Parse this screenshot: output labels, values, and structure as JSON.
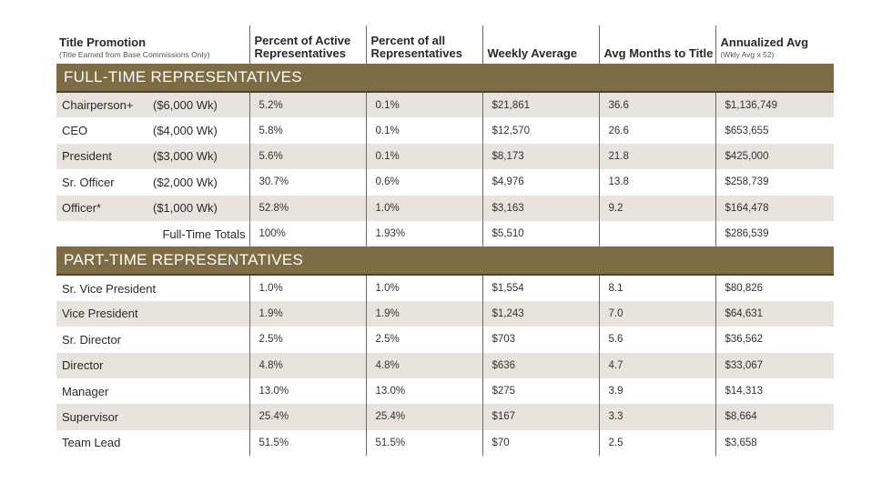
{
  "header": {
    "col1_title": "Title Promotion",
    "col1_sub": "(Title Earned from Base Commissions Only)",
    "col2": "Percent of Active Representatives",
    "col3": "Percent of all Representatives",
    "col4": "Weekly Average",
    "col5": "Avg Months to Title",
    "col6_title": "Annualized Avg",
    "col6_sub": "(Wkly Avg x 52)"
  },
  "full_time": {
    "section_label": "FULL-TIME REPRESENTATIVES",
    "rows": [
      {
        "title": "Chairperson+",
        "weekly": "($6,000 Wk)",
        "pct_active": "5.2%",
        "pct_all": "0.1%",
        "weekly_avg": "$21,861",
        "months": "36.6",
        "annualized": "$1,136,749"
      },
      {
        "title": "CEO",
        "weekly": "($4,000 Wk)",
        "pct_active": "5.8%",
        "pct_all": "0.1%",
        "weekly_avg": "$12,570",
        "months": "26.6",
        "annualized": "$653,655"
      },
      {
        "title": "President",
        "weekly": "($3,000 Wk)",
        "pct_active": "5.6%",
        "pct_all": "0.1%",
        "weekly_avg": "$8,173",
        "months": "21.8",
        "annualized": "$425,000"
      },
      {
        "title": "Sr. Officer",
        "weekly": "($2,000 Wk)",
        "pct_active": "30.7%",
        "pct_all": "0.6%",
        "weekly_avg": "$4,976",
        "months": "13.8",
        "annualized": "$258,739"
      },
      {
        "title": "Officer*",
        "weekly": "($1,000 Wk)",
        "pct_active": "52.8%",
        "pct_all": "1.0%",
        "weekly_avg": "$3,163",
        "months": "9.2",
        "annualized": "$164,478"
      }
    ],
    "totals": {
      "label": "Full-Time Totals",
      "pct_active": "100%",
      "pct_all": "1.93%",
      "weekly_avg": "$5,510",
      "months": "",
      "annualized": "$286,539"
    }
  },
  "part_time": {
    "section_label": "PART-TIME REPRESENTATIVES",
    "rows": [
      {
        "title": "Sr. Vice President",
        "pct_active": "1.0%",
        "pct_all": "1.0%",
        "weekly_avg": "$1,554",
        "months": "8.1",
        "annualized": "$80,826"
      },
      {
        "title": "Vice President",
        "pct_active": "1.9%",
        "pct_all": "1.9%",
        "weekly_avg": "$1,243",
        "months": "7.0",
        "annualized": "$64,631"
      },
      {
        "title": "Sr. Director",
        "pct_active": "2.5%",
        "pct_all": "2.5%",
        "weekly_avg": "$703",
        "months": "5.6",
        "annualized": "$36,562"
      },
      {
        "title": "Director",
        "pct_active": "4.8%",
        "pct_all": "4.8%",
        "weekly_avg": "$636",
        "months": "4.7",
        "annualized": "$33,067"
      },
      {
        "title": "Manager",
        "pct_active": "13.0%",
        "pct_all": "13.0%",
        "weekly_avg": "$275",
        "months": "3.9",
        "annualized": "$14,313"
      },
      {
        "title": "Supervisor",
        "pct_active": "25.4%",
        "pct_all": "25.4%",
        "weekly_avg": "$167",
        "months": "3.3",
        "annualized": "$8,664"
      },
      {
        "title": "Team Lead",
        "pct_active": "51.5%",
        "pct_all": "51.5%",
        "weekly_avg": "$70",
        "months": "2.5",
        "annualized": "$3,658"
      }
    ]
  },
  "colors": {
    "section_band": "#7e6c45",
    "shade_row": "#e9e3dd",
    "divider": "#6a6a6a"
  }
}
